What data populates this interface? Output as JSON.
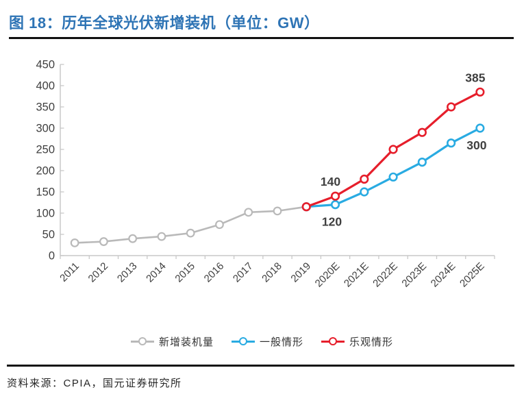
{
  "header": {
    "title": "图 18：历年全球光伏新增装机（单位：GW）",
    "accent_color": "#2E74B5"
  },
  "footer": {
    "source": "资料来源：CPIA，国元证券研究所"
  },
  "legend": {
    "items": [
      {
        "key": "historical",
        "label": "新增装机量",
        "color": "#B9B9B9"
      },
      {
        "key": "general",
        "label": "一般情形",
        "color": "#29ABE2"
      },
      {
        "key": "optimistic",
        "label": "乐观情形",
        "color": "#E61E2B"
      }
    ]
  },
  "chart_data": {
    "type": "line",
    "title": "历年全球光伏新增装机（单位：GW）",
    "unit": "GW",
    "categories": [
      "2011",
      "2012",
      "2013",
      "2014",
      "2015",
      "2016",
      "2017",
      "2018",
      "2019",
      "2020E",
      "2021E",
      "2022E",
      "2023E",
      "2024E",
      "2025E"
    ],
    "ylim": [
      0,
      450
    ],
    "ytick_step": 50,
    "grid": false,
    "legend_position": "bottom",
    "axis_color": "#C8C8C8",
    "tick_label_color": "#3F3F3F",
    "point_label_color": "#3F3F3F",
    "series": [
      {
        "name": "新增装机量",
        "key": "historical",
        "color": "#B9B9B9",
        "start_index": 0,
        "values": [
          30,
          33,
          40,
          45,
          53,
          73,
          102,
          105,
          115
        ],
        "point_labels": []
      },
      {
        "name": "一般情形",
        "key": "general",
        "color": "#29ABE2",
        "start_index": 8,
        "values": [
          115,
          120,
          150,
          185,
          220,
          265,
          300
        ],
        "point_labels": [
          {
            "index": 1,
            "text": "120",
            "position": "below"
          },
          {
            "index": 6,
            "text": "300",
            "position": "below"
          }
        ]
      },
      {
        "name": "乐观情形",
        "key": "optimistic",
        "color": "#E61E2B",
        "start_index": 8,
        "values": [
          115,
          140,
          180,
          250,
          290,
          350,
          385
        ],
        "point_labels": [
          {
            "index": 1,
            "text": "140",
            "position": "above"
          },
          {
            "index": 6,
            "text": "385",
            "position": "above"
          }
        ]
      }
    ]
  }
}
